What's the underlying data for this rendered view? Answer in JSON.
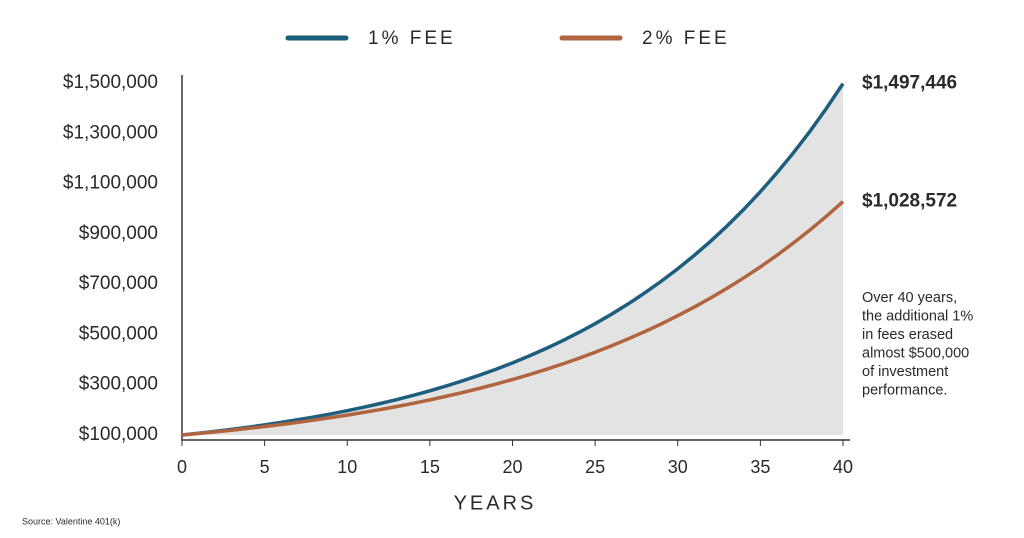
{
  "chart_data": {
    "type": "line",
    "xlabel": "YEARS",
    "source": "Source: Valentine 401(k)",
    "annotation": [
      "Over 40 years,",
      "the additional 1%",
      "in fees erased",
      "almost $500,000",
      "of investment",
      "performance."
    ],
    "x": [
      0,
      1,
      2,
      3,
      4,
      5,
      6,
      7,
      8,
      9,
      10,
      11,
      12,
      13,
      14,
      15,
      16,
      17,
      18,
      19,
      20,
      21,
      22,
      23,
      24,
      25,
      26,
      27,
      28,
      29,
      30,
      31,
      32,
      33,
      34,
      35,
      36,
      37,
      38,
      39,
      40
    ],
    "series": [
      {
        "name": "1% FEE",
        "color": "#1d5e7e",
        "values": [
          100000,
          107000,
          114490,
          122504,
          131080,
          140255,
          150073,
          160578,
          171819,
          183846,
          196715,
          210485,
          225219,
          240985,
          257853,
          275903,
          295216,
          315882,
          337993,
          361653,
          386968,
          414056,
          443040,
          474053,
          507237,
          542743,
          580735,
          621387,
          664884,
          711426,
          761226,
          814511,
          871527,
          932534,
          997811,
          1067658,
          1142394,
          1222362,
          1307927,
          1399482,
          1497446
        ],
        "value_labels": [
          null,
          null,
          null,
          null,
          null,
          null,
          null,
          null,
          null,
          null,
          null,
          null,
          null,
          null,
          null,
          null,
          null,
          null,
          null,
          null,
          null,
          null,
          null,
          null,
          null,
          null,
          null,
          null,
          null,
          null,
          null,
          null,
          null,
          null,
          null,
          null,
          null,
          null,
          null,
          null,
          "$1,497,446"
        ]
      },
      {
        "name": "2% FEE",
        "color": "#b0643f",
        "values": [
          100000,
          106000,
          112360,
          119102,
          126248,
          133823,
          141852,
          150363,
          159385,
          168948,
          179085,
          189830,
          201220,
          213293,
          226090,
          239656,
          254035,
          269277,
          285434,
          302560,
          320714,
          339956,
          360354,
          381975,
          404893,
          429187,
          454938,
          482235,
          511169,
          541839,
          574349,
          608810,
          645339,
          684059,
          725103,
          768609,
          814725,
          863609,
          915425,
          970351,
          1028572
        ],
        "value_labels": [
          null,
          null,
          null,
          null,
          null,
          null,
          null,
          null,
          null,
          null,
          null,
          null,
          null,
          null,
          null,
          null,
          null,
          null,
          null,
          null,
          null,
          null,
          null,
          null,
          null,
          null,
          null,
          null,
          null,
          null,
          null,
          null,
          null,
          null,
          null,
          null,
          null,
          null,
          null,
          null,
          "$1,028,572"
        ]
      }
    ],
    "area_color": "#e3e3e3",
    "xlim": [
      0,
      40
    ],
    "xticks": [
      0,
      5,
      10,
      15,
      20,
      25,
      30,
      35,
      40
    ],
    "ylim": [
      100000,
      1500000
    ],
    "yticks": [
      {
        "value": 100000,
        "label": "$100,000"
      },
      {
        "value": 300000,
        "label": "$300,000"
      },
      {
        "value": 500000,
        "label": "$500,000"
      },
      {
        "value": 700000,
        "label": "$700,000"
      },
      {
        "value": 900000,
        "label": "$900,000"
      },
      {
        "value": 1100000,
        "label": "$1,100,000"
      },
      {
        "value": 1300000,
        "label": "$1,300,000"
      },
      {
        "value": 1500000,
        "label": "$1,500,000"
      }
    ]
  }
}
